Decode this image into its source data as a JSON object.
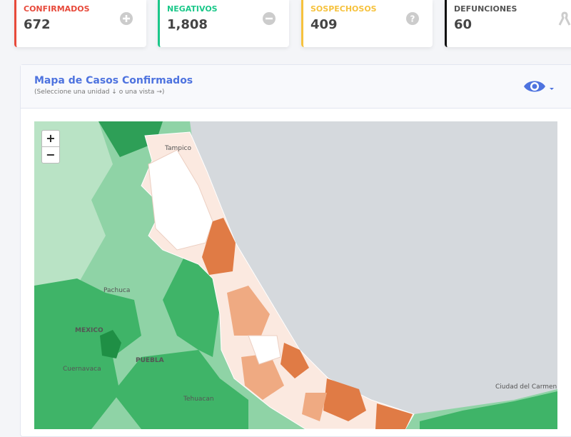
{
  "cards": [
    {
      "label": "CONFIRMADOS",
      "value": "672"
    },
    {
      "label": "NEGATIVOS",
      "value": "1,808"
    },
    {
      "label": "SOSPECHOSOS",
      "value": "409"
    },
    {
      "label": "DEFUNCIONES",
      "value": "60"
    }
  ],
  "panel": {
    "title": "Mapa de Casos Confirmados",
    "subtitle": "(Seleccione una unidad ↓ o una vista →)"
  },
  "map": {
    "zoom_in": "+",
    "zoom_out": "−",
    "places": [
      "Tampico",
      "Pachuca",
      "MEXICO",
      "Cuernavaca",
      "PUEBLA",
      "Tehuacan",
      "Ciudad del Carmen"
    ]
  }
}
